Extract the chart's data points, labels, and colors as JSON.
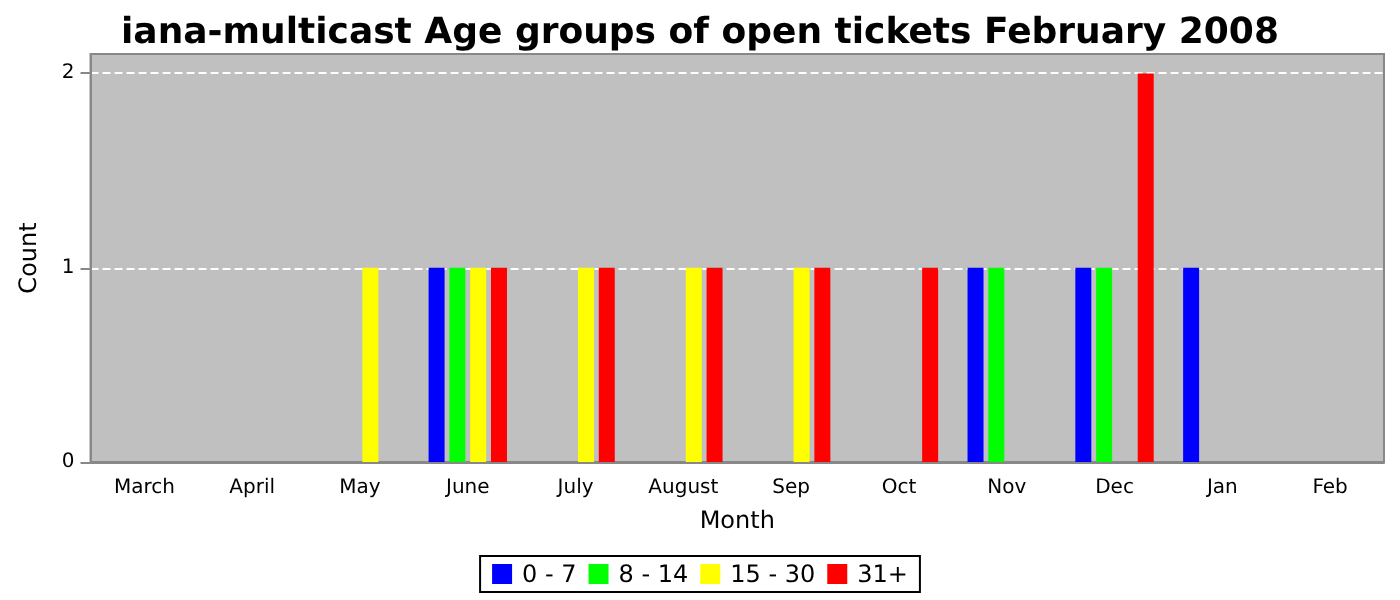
{
  "chart_data": {
    "type": "bar",
    "title": "iana-multicast Age groups of open tickets February 2008",
    "xlabel": "Month",
    "ylabel": "Count",
    "categories": [
      "March",
      "April",
      "May",
      "June",
      "July",
      "August",
      "Sep",
      "Oct",
      "Nov",
      "Dec",
      "Jan",
      "Feb"
    ],
    "series": [
      {
        "name": "0 - 7",
        "color": "#0000ff",
        "values": [
          0,
          0,
          0,
          1,
          0,
          0,
          0,
          0,
          1,
          1,
          1,
          0
        ]
      },
      {
        "name": "8 - 14",
        "color": "#00ff00",
        "values": [
          0,
          0,
          0,
          1,
          0,
          0,
          0,
          0,
          1,
          1,
          0,
          0
        ]
      },
      {
        "name": "15 - 30",
        "color": "#ffff00",
        "values": [
          0,
          0,
          1,
          1,
          1,
          1,
          1,
          0,
          0,
          0,
          0,
          0
        ]
      },
      {
        "name": "31+",
        "color": "#ff0000",
        "values": [
          0,
          0,
          0,
          1,
          1,
          1,
          1,
          1,
          0,
          2,
          0,
          0
        ]
      }
    ],
    "ylim": [
      0,
      2.1
    ],
    "yticks": [
      0,
      1,
      2
    ],
    "grid": "y",
    "legend": "bottom"
  }
}
